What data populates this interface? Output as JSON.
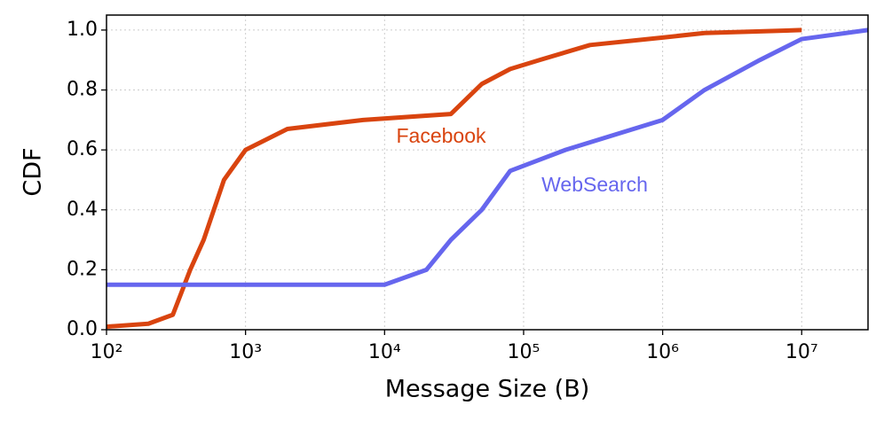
{
  "chart_data": {
    "type": "line",
    "x_label": "Message Size (B)",
    "y_label": "CDF",
    "xscale": "log",
    "grid": true,
    "xlim": [
      100,
      30000000
    ],
    "ylim": [
      0,
      1.05
    ],
    "xticks": [
      {
        "value": 100,
        "label": "10²"
      },
      {
        "value": 1000,
        "label": "10³"
      },
      {
        "value": 10000,
        "label": "10⁴"
      },
      {
        "value": 100000,
        "label": "10⁵"
      },
      {
        "value": 1000000,
        "label": "10⁶"
      },
      {
        "value": 10000000,
        "label": "10⁷"
      }
    ],
    "yticks": [
      {
        "value": 0,
        "label": "0.0"
      },
      0.2,
      0.4,
      0.6,
      0.8,
      {
        "value": 1,
        "label": "1.0"
      }
    ],
    "series": [
      {
        "name": "Facebook",
        "color": "#d9440f",
        "x": [
          100,
          200,
          300,
          400,
          500,
          700,
          1000,
          2000,
          7000,
          30000,
          50000,
          80000,
          130000,
          300000,
          1000000,
          2000000,
          10000000
        ],
        "values": [
          0.01,
          0.02,
          0.05,
          0.2,
          0.3,
          0.5,
          0.6,
          0.67,
          0.7,
          0.72,
          0.82,
          0.87,
          0.9,
          0.95,
          0.975,
          0.99,
          1.0
        ]
      },
      {
        "name": "WebSearch",
        "color": "#6666ee",
        "x": [
          100,
          10000,
          20000,
          30000,
          50000,
          80000,
          200000,
          1000000,
          2000000,
          5000000,
          10000000,
          30000000
        ],
        "values": [
          0.15,
          0.15,
          0.2,
          0.3,
          0.4,
          0.53,
          0.6,
          0.7,
          0.8,
          0.9,
          0.97,
          1.0
        ]
      }
    ]
  }
}
